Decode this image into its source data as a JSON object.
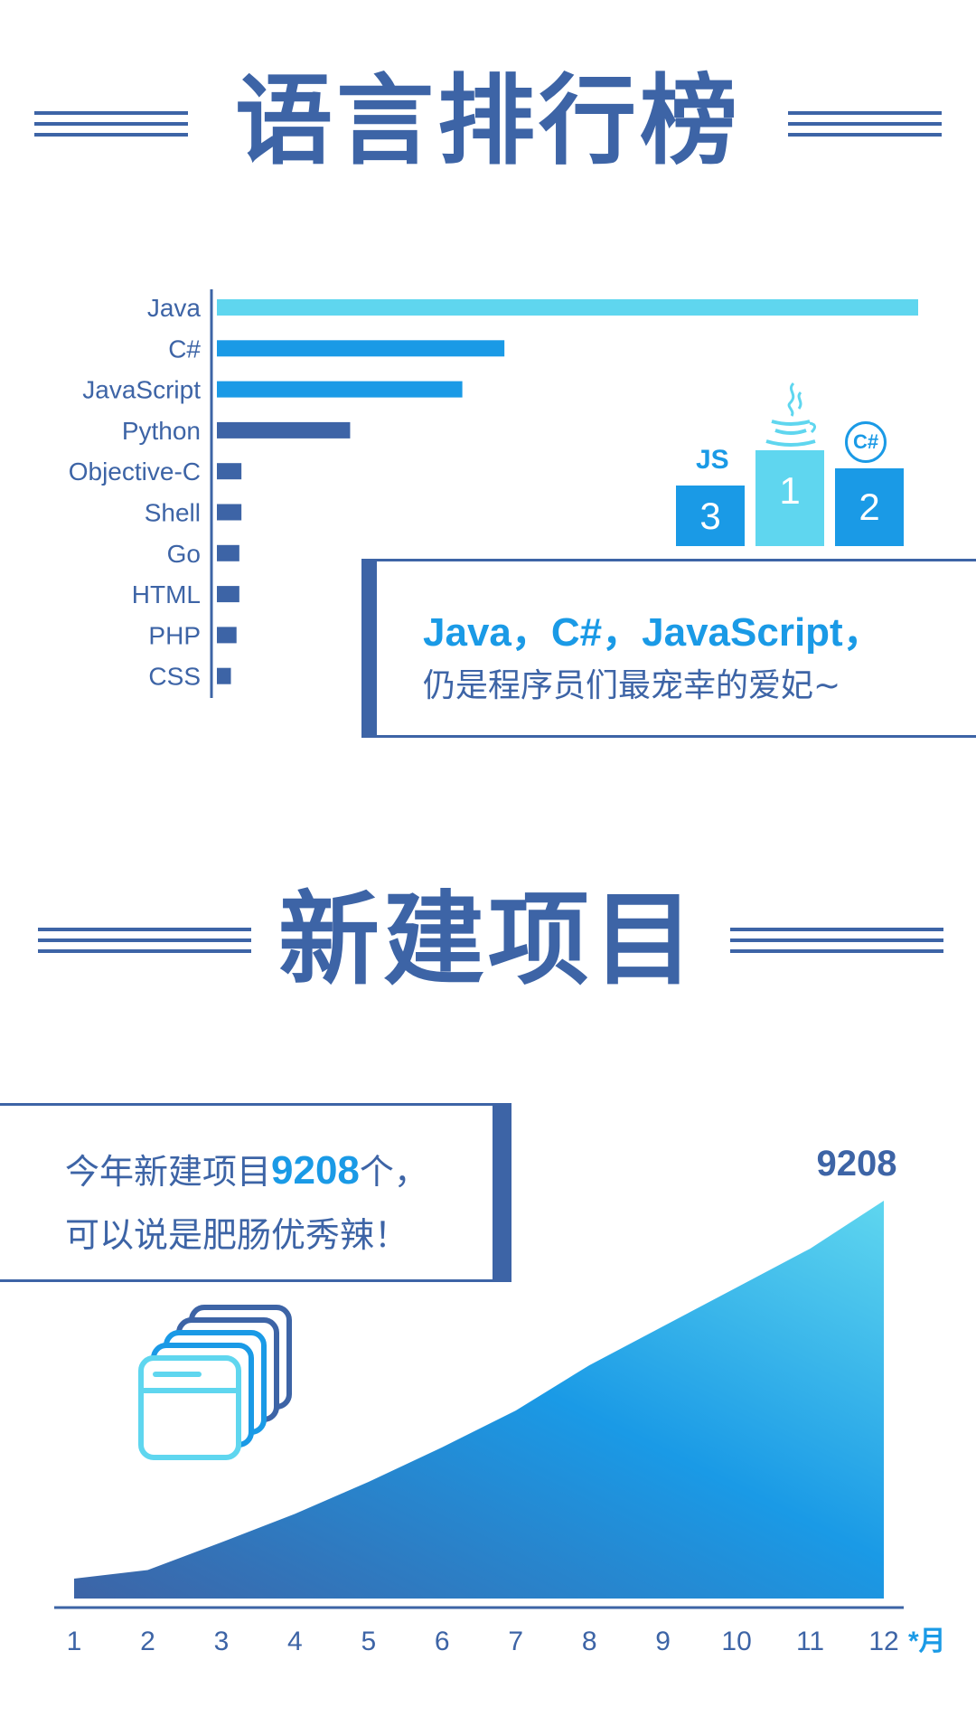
{
  "section1": {
    "title": "语言排行榜",
    "callout_line1": "Java，C#，JavaScript，",
    "callout_line2": "仍是程序员们最宠幸的爱妃~",
    "podium": {
      "first": "1",
      "second": "2",
      "third": "3",
      "second_badge": "C#",
      "third_badge": "JS"
    }
  },
  "section2": {
    "title": "新建项目",
    "callout_prefix": "今年新建项目",
    "callout_number": "9208",
    "callout_suffix": "个，",
    "callout_line2": "可以说是肥肠优秀辣！",
    "peak_label": "9208",
    "x_unit": "*月"
  },
  "colors": {
    "navy": "#3d64a6",
    "blue": "#1a9ae6",
    "light_blue": "#5fd6ef"
  },
  "chart_data": [
    {
      "type": "bar",
      "orientation": "horizontal",
      "categories": [
        "Java",
        "C#",
        "JavaScript",
        "Python",
        "Objective-C",
        "Shell",
        "Go",
        "HTML",
        "PHP",
        "CSS"
      ],
      "values": [
        100,
        41,
        35,
        19,
        3.5,
        3.5,
        3.2,
        3.2,
        2.8,
        2
      ],
      "bar_colors": [
        "#5fd6ef",
        "#1a9ae6",
        "#1a9ae6",
        "#3d64a6",
        "#3d64a6",
        "#3d64a6",
        "#3d64a6",
        "#3d64a6",
        "#3d64a6",
        "#3d64a6"
      ],
      "title": "语言排行榜"
    },
    {
      "type": "area",
      "x": [
        1,
        2,
        3,
        4,
        5,
        6,
        7,
        8,
        9,
        10,
        11,
        12
      ],
      "x_tick_labels": [
        "1",
        "2",
        "3",
        "4",
        "5",
        "6",
        "7",
        "8",
        "9",
        "10",
        "11",
        "12"
      ],
      "values": [
        460,
        660,
        1300,
        1960,
        2700,
        3500,
        4350,
        5400,
        6300,
        7200,
        8100,
        9208
      ],
      "ylim": [
        0,
        9208
      ],
      "annotation": "9208",
      "title": "新建项目"
    }
  ]
}
